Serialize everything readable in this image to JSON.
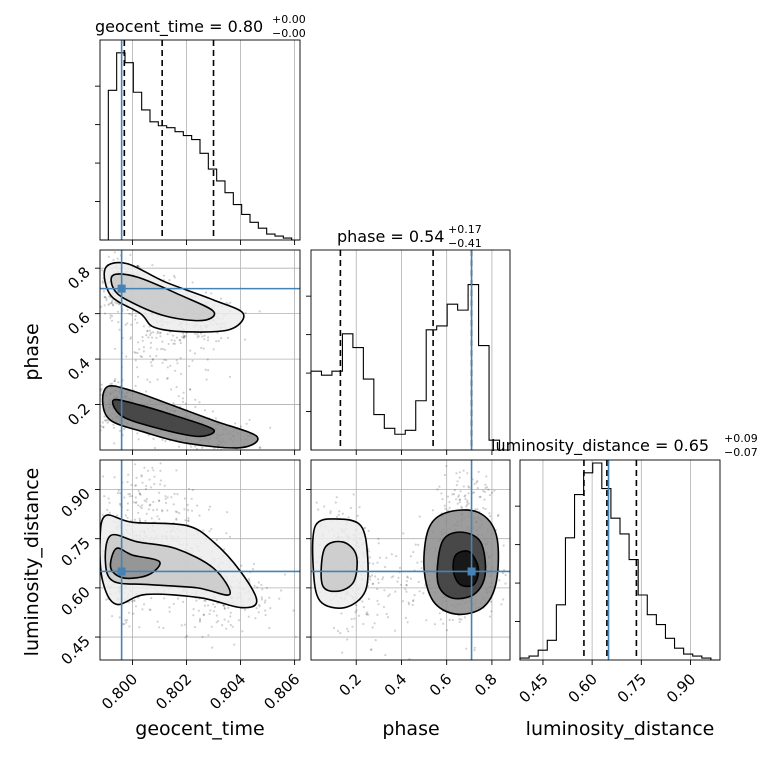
{
  "chart_data": {
    "type": "corner",
    "parameters": [
      "geocent_time",
      "phase",
      "luminosity_distance"
    ],
    "truth_color": "#4682b4",
    "truths": {
      "geocent_time": 0.7996,
      "phase": 0.71,
      "luminosity_distance": 0.65
    },
    "ranges": {
      "geocent_time": [
        0.7988,
        0.8062
      ],
      "phase": [
        0.0,
        0.88
      ],
      "luminosity_distance": [
        0.38,
        0.99
      ]
    },
    "ticks": {
      "geocent_time": [
        0.8,
        0.802,
        0.804,
        0.806
      ],
      "phase": [
        0.2,
        0.4,
        0.6,
        0.8
      ],
      "luminosity_distance": [
        0.45,
        0.6,
        0.75,
        0.9
      ]
    },
    "tick_labels": {
      "geocent_time": [
        "0.800",
        "0.802",
        "0.804",
        "0.806"
      ],
      "phase": [
        "0.2",
        "0.4",
        "0.6",
        "0.8"
      ],
      "luminosity_distance": [
        "0.45",
        "0.60",
        "0.75",
        "0.90"
      ]
    },
    "titles": {
      "geocent_time": {
        "name": "geocent_time",
        "median": "0.80",
        "plus": "+0.00",
        "minus": "−0.00"
      },
      "phase": {
        "name": "phase",
        "median": "0.54",
        "plus": "+0.17",
        "minus": "−0.41"
      },
      "luminosity_distance": {
        "name": "luminosity_distance",
        "median": "0.65",
        "plus": "+0.09",
        "minus": "−0.07"
      }
    },
    "quantiles": {
      "geocent_time": [
        0.7997,
        0.8011,
        0.803
      ],
      "phase": [
        0.13,
        0.54,
        0.71
      ],
      "luminosity_distance": [
        0.575,
        0.645,
        0.735
      ]
    },
    "histograms": {
      "geocent_time": [
        0.0,
        0.76,
        0.95,
        0.9,
        0.75,
        0.66,
        0.6,
        0.58,
        0.57,
        0.55,
        0.53,
        0.51,
        0.44,
        0.36,
        0.3,
        0.24,
        0.18,
        0.13,
        0.09,
        0.06,
        0.03,
        0.02,
        0.01,
        0.0
      ],
      "phase": [
        0.4,
        0.38,
        0.4,
        0.59,
        0.52,
        0.36,
        0.18,
        0.11,
        0.08,
        0.1,
        0.25,
        0.61,
        0.63,
        0.74,
        0.71,
        0.84,
        0.53,
        0.05,
        0.0
      ],
      "luminosity_distance": [
        0.01,
        0.02,
        0.05,
        0.1,
        0.28,
        0.62,
        0.84,
        0.95,
        1.0,
        0.87,
        0.72,
        0.64,
        0.51,
        0.33,
        0.23,
        0.18,
        0.11,
        0.06,
        0.03,
        0.02,
        0.01,
        0.0
      ]
    },
    "axis_labels": {
      "geocent_time": "geocent_time",
      "phase": "phase",
      "luminosity_distance": "luminosity_distance"
    }
  }
}
